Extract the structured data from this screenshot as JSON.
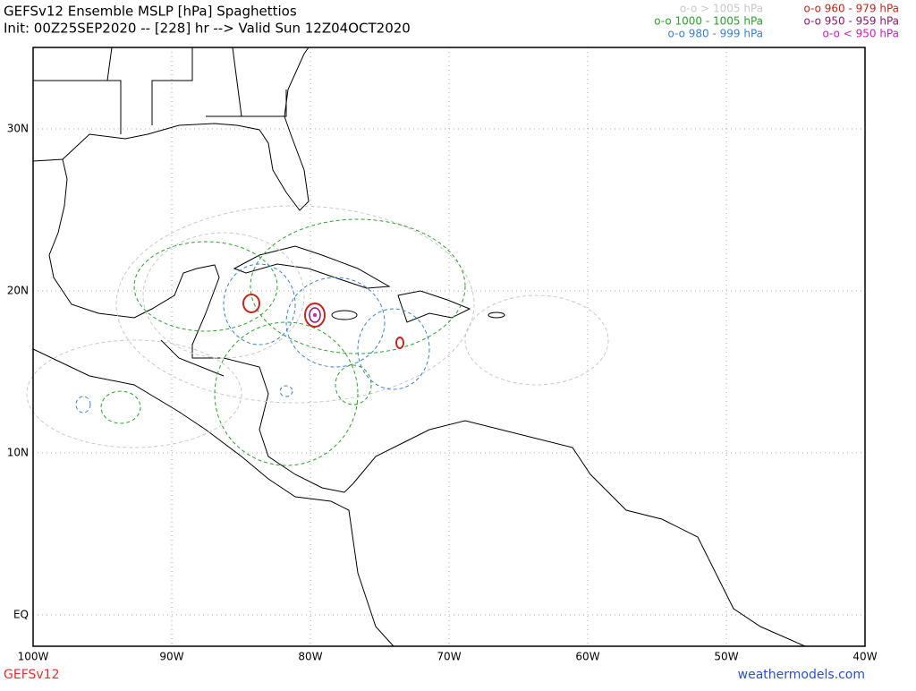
{
  "header": {
    "title": "GEFSv12 Ensemble MSLP [hPa] Spaghettios",
    "init": "Init: 00Z25SEP2020 -- [228] hr --> Valid Sun 12Z04OCT2020"
  },
  "legend": [
    {
      "label": "o-o > 1005 hPa",
      "color": "#c8c8c8"
    },
    {
      "label": "o-o 1000 - 1005 hPa",
      "color": "#2ca02c"
    },
    {
      "label": "o-o 980 - 999 hPa",
      "color": "#3a7fd5"
    },
    {
      "label": "o-o 960 - 979 hPa",
      "color": "#c0281e"
    },
    {
      "label": "o-o 950 - 959 hPa",
      "color": "#8b1a6b"
    },
    {
      "label": "o-o < 950 hPa",
      "color": "#c020c0"
    }
  ],
  "lat_labels": [
    "30N",
    "20N",
    "10N",
    "EQ"
  ],
  "lon_labels": [
    "100W",
    "90W",
    "80W",
    "70W",
    "60W",
    "50W",
    "40W"
  ],
  "footer": {
    "model": "GEFSv12",
    "site": "weathermodels.com"
  }
}
